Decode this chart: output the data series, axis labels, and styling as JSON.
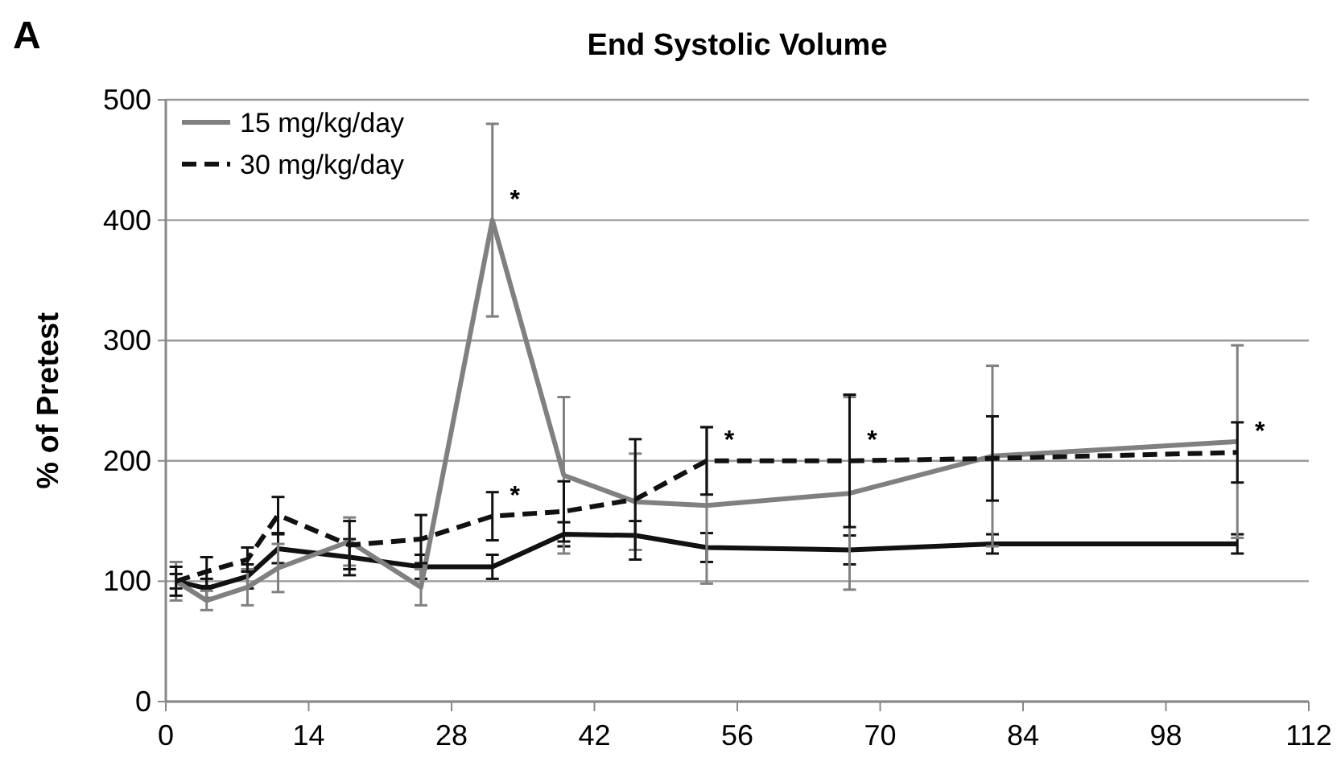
{
  "chart_data": {
    "type": "line",
    "title": "End Systolic Volume",
    "ylabel": "% of Pretest",
    "x": [
      1,
      4,
      8,
      11,
      18,
      25,
      32,
      39,
      46,
      53,
      67,
      81,
      105
    ],
    "series": [
      {
        "color": "#111111",
        "line_style": "solid",
        "values": [
          100,
          94,
          104,
          127,
          120,
          112,
          112,
          139,
          138,
          128,
          126,
          131,
          131
        ],
        "errors": [
          6,
          8,
          10,
          12,
          15,
          10,
          10,
          10,
          12,
          12,
          12,
          8,
          8
        ]
      },
      {
        "name": "15 mg/kg/day",
        "color": "#808080",
        "line_style": "solid",
        "values": [
          100,
          84,
          95,
          111,
          133,
          95,
          400,
          188,
          166,
          163,
          173,
          204,
          216
        ],
        "errors": [
          16,
          8,
          15,
          20,
          20,
          15,
          80,
          65,
          40,
          65,
          80,
          75,
          80
        ]
      },
      {
        "name": "30 mg/kg/day",
        "color": "#111111",
        "line_style": "dashed",
        "values": [
          100,
          108,
          118,
          155,
          130,
          135,
          154,
          158,
          168,
          200,
          200,
          202,
          207
        ],
        "errors": [
          12,
          12,
          10,
          15,
          20,
          20,
          20,
          25,
          50,
          28,
          55,
          35,
          25
        ]
      }
    ],
    "xlim": [
      0,
      112
    ],
    "xticks": [
      0,
      14,
      28,
      42,
      56,
      70,
      84,
      98,
      112
    ],
    "ylim": [
      0,
      500
    ],
    "yticks": [
      0,
      100,
      200,
      300,
      400,
      500
    ],
    "grid": "y",
    "legend": "top left",
    "marker": "none",
    "annotations": [
      "A",
      {
        "text": "*",
        "x": 32,
        "y": 400
      },
      {
        "text": "*",
        "x": 32,
        "y": 154
      },
      {
        "text": "*",
        "x": 53,
        "y": 200
      },
      {
        "text": "*",
        "x": 67,
        "y": 200
      },
      {
        "text": "*",
        "x": 105,
        "y": 207
      }
    ]
  }
}
